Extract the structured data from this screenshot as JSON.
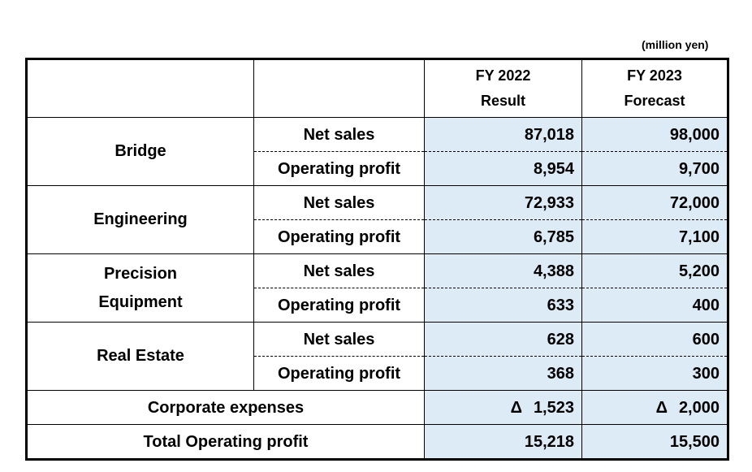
{
  "unit": "(million yen)",
  "headers": {
    "fy2022_line1": "FY 2022",
    "fy2022_line2": "Result",
    "fy2023_line1": "FY 2023",
    "fy2023_line2": "Forecast"
  },
  "labels": {
    "net_sales": "Net sales",
    "operating_profit": "Operating profit"
  },
  "segments": [
    {
      "name_line1": "Bridge",
      "name_line2": "",
      "net_sales": {
        "fy2022": "87,018",
        "fy2023": "98,000"
      },
      "operating_profit": {
        "fy2022": "8,954",
        "fy2023": "9,700"
      }
    },
    {
      "name_line1": "Engineering",
      "name_line2": "",
      "net_sales": {
        "fy2022": "72,933",
        "fy2023": "72,000"
      },
      "operating_profit": {
        "fy2022": "6,785",
        "fy2023": "7,100"
      }
    },
    {
      "name_line1": "Precision",
      "name_line2": "Equipment",
      "net_sales": {
        "fy2022": "4,388",
        "fy2023": "5,200"
      },
      "operating_profit": {
        "fy2022": "633",
        "fy2023": "400"
      }
    },
    {
      "name_line1": "Real Estate",
      "name_line2": "",
      "net_sales": {
        "fy2022": "628",
        "fy2023": "600"
      },
      "operating_profit": {
        "fy2022": "368",
        "fy2023": "300"
      }
    }
  ],
  "corporate_expenses": {
    "label": "Corporate expenses",
    "delta_symbol": "Δ",
    "fy2022": "1,523",
    "fy2023": "2,000"
  },
  "total": {
    "label": "Total Operating profit",
    "fy2022": "15,218",
    "fy2023": "15,500"
  }
}
